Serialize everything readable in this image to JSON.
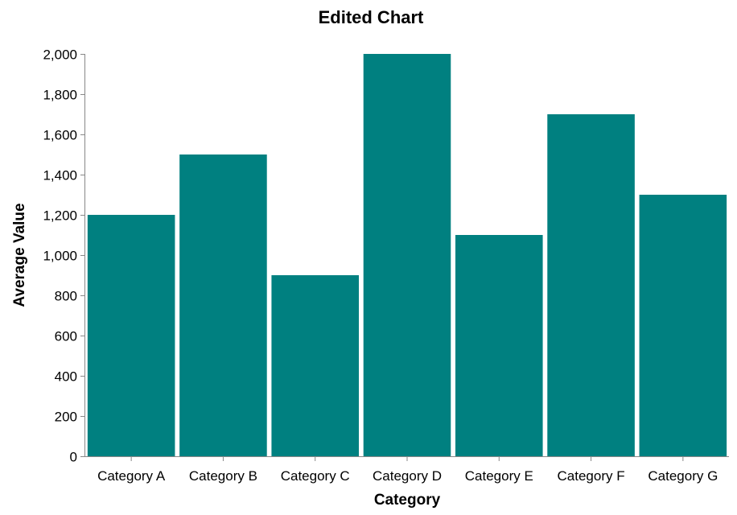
{
  "chart_data": {
    "type": "bar",
    "title": "Edited Chart",
    "xlabel": "Category",
    "ylabel": "Average Value",
    "categories": [
      "Category A",
      "Category B",
      "Category C",
      "Category D",
      "Category E",
      "Category F",
      "Category G"
    ],
    "values": [
      1200,
      1500,
      900,
      2000,
      1100,
      1700,
      1300
    ],
    "ylim": [
      0,
      2000
    ],
    "yticks": [
      0,
      200,
      400,
      600,
      800,
      1000,
      1200,
      1400,
      1600,
      1800,
      2000
    ],
    "ytick_labels": [
      "0",
      "200",
      "400",
      "600",
      "800",
      "1,000",
      "1,200",
      "1,400",
      "1,600",
      "1,800",
      "2,000"
    ],
    "grid": false,
    "bar_color": "#008080"
  }
}
